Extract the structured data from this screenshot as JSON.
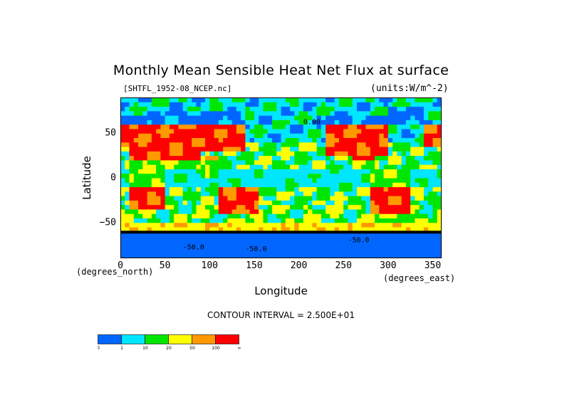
{
  "chart_data": {
    "type": "heatmap",
    "title": "Monthly Mean Sensible Heat Net Flux at surface",
    "source_label": "[SHTFL_1952-08_NCEP.nc]",
    "units_label": "(units:W/m^-2)",
    "xlabel": "Longitude",
    "ylabel": "Latitude",
    "x_unit_label": "(degrees_east)",
    "y_unit_label": "(degrees_north)",
    "xlim": [
      0,
      360
    ],
    "ylim": [
      -90,
      90
    ],
    "x_ticks": [
      "0",
      "50",
      "100",
      "150",
      "200",
      "250",
      "300",
      "350"
    ],
    "y_ticks": [
      "50",
      "0",
      "-50"
    ],
    "contour_interval": "CONTOUR INTERVAL = 2.500E+01",
    "contour_labels": [
      "0.00",
      "-50.0",
      "-50.0",
      "-50.0"
    ],
    "legend": {
      "bins": [
        {
          "label": "0",
          "color": "#0066ff"
        },
        {
          "label": "1",
          "color": "#00e6ff"
        },
        {
          "label": "10",
          "color": "#00e600"
        },
        {
          "label": "20",
          "color": "#ffff00"
        },
        {
          "label": "50",
          "color": "#ff9900"
        },
        {
          "label": "100",
          "color": "#ff0000"
        }
      ],
      "end_label": "∞"
    }
  }
}
